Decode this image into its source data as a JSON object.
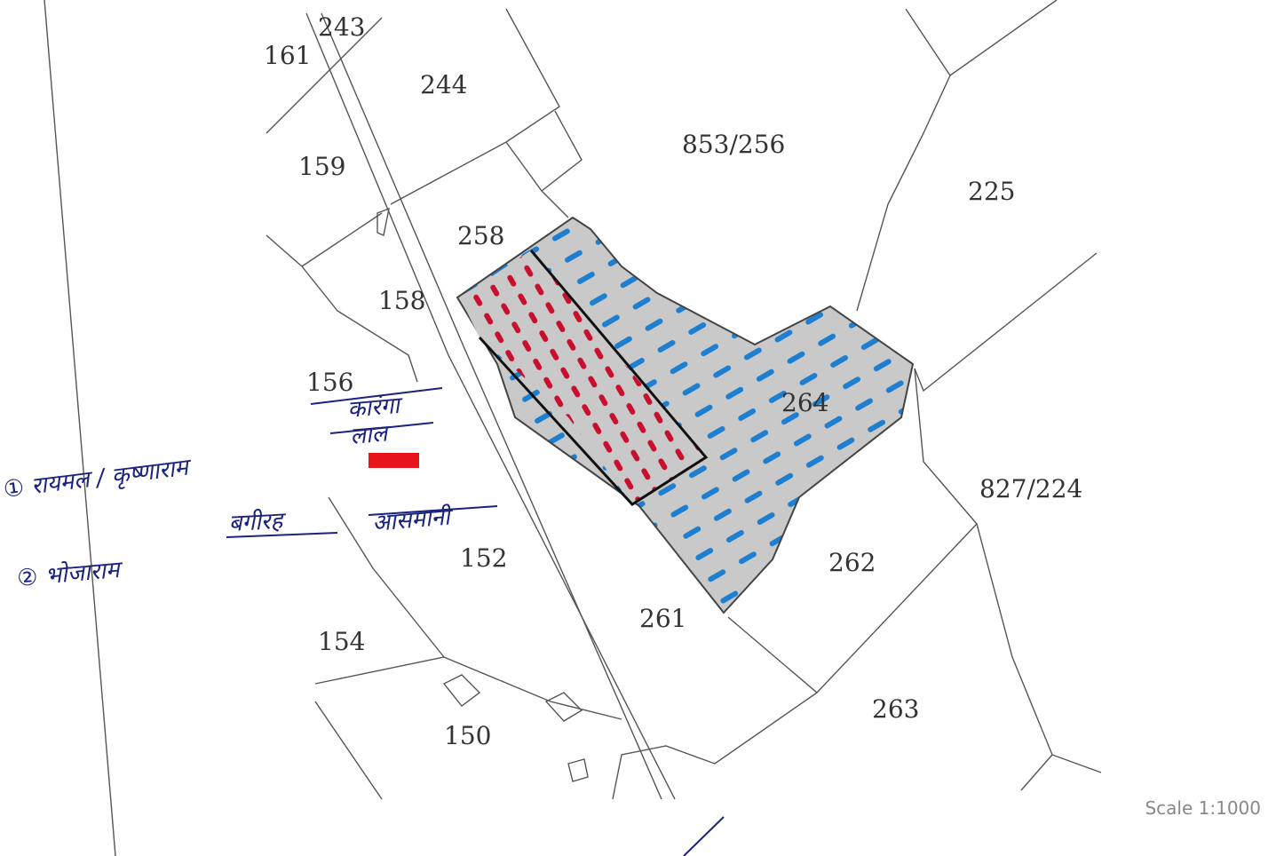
{
  "parcels": [
    "243",
    "161",
    "244",
    "853/256",
    "225",
    "159",
    "258",
    "158",
    "156",
    "264",
    "827/224",
    "152",
    "262",
    "261",
    "154",
    "263",
    "150"
  ],
  "annotations": [
    "कारंगा",
    "लाल",
    "① रायमल / कृष्णाराम",
    "② भोजाराम",
    "बगीरह",
    "आसमानी"
  ],
  "scale": "Scale 1:1000"
}
